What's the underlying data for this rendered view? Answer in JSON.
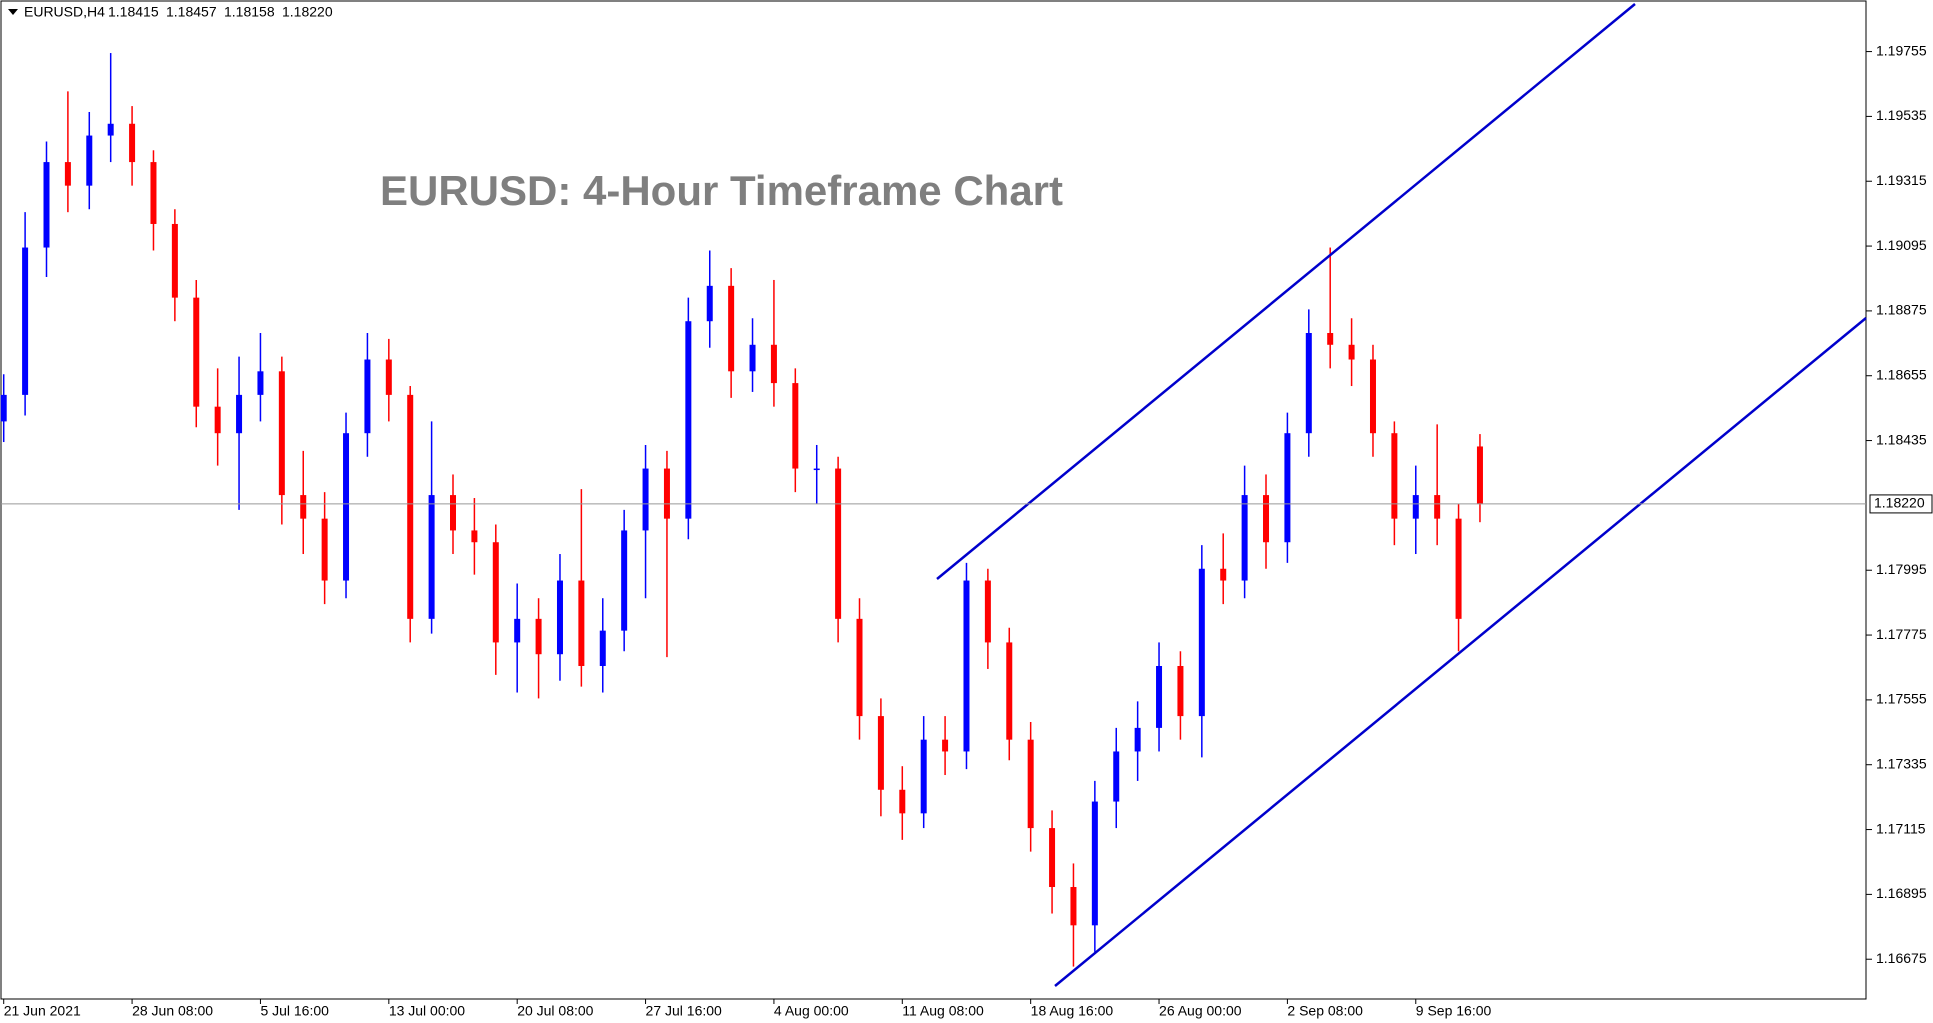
{
  "header": {
    "symbol": "EURUSD,H4",
    "open": "1.18415",
    "high": "1.18457",
    "low": "1.18158",
    "close": "1.18220"
  },
  "chart_data": {
    "type": "candlestick",
    "title": "EURUSD: 4-Hour Timeframe Chart",
    "up_color": "#0000ff",
    "down_color": "#ff0000",
    "categories": [
      "21 Jun 2021",
      null,
      null,
      null,
      null,
      null,
      "28 Jun 08:00",
      null,
      null,
      null,
      null,
      null,
      "5 Jul 16:00",
      null,
      null,
      null,
      null,
      null,
      "13 Jul 00:00",
      null,
      null,
      null,
      null,
      null,
      "20 Jul 08:00",
      null,
      null,
      null,
      null,
      null,
      "27 Jul 16:00",
      null,
      null,
      null,
      null,
      null,
      "4 Aug 00:00",
      null,
      null,
      null,
      null,
      null,
      "11 Aug 08:00",
      null,
      null,
      null,
      null,
      null,
      "18 Aug 16:00",
      null,
      null,
      null,
      null,
      null,
      "26 Aug 00:00",
      null,
      null,
      null,
      null,
      null,
      "2 Sep 08:00",
      null,
      null,
      null,
      null,
      null,
      "9 Sep 16:00",
      null,
      null,
      null
    ],
    "open": [
      1.185,
      1.1859,
      1.1909,
      1.1938,
      1.193,
      1.1947,
      1.1951,
      1.1938,
      1.1917,
      1.1892,
      1.1855,
      1.1846,
      1.1859,
      1.1867,
      1.1825,
      1.1817,
      1.1796,
      1.1846,
      1.1871,
      1.1859,
      1.1783,
      1.1825,
      1.1813,
      1.1809,
      1.1775,
      1.1783,
      1.1771,
      1.1796,
      1.1767,
      1.1779,
      1.1813,
      1.1834,
      1.1817,
      1.1884,
      1.1896,
      1.1867,
      1.1876,
      1.1863,
      1.1834,
      1.1834,
      1.1783,
      1.175,
      1.1725,
      1.1717,
      1.1742,
      1.1738,
      1.1796,
      1.1775,
      1.1742,
      1.1712,
      1.1692,
      1.1679,
      1.1721,
      1.1738,
      1.1746,
      1.1767,
      1.175,
      1.18,
      1.1796,
      1.1825,
      1.1809,
      1.1846,
      1.188,
      1.1876,
      1.1871,
      1.1846,
      1.1817,
      1.1825,
      1.1817,
      1.18415
    ],
    "high": [
      1.1866,
      1.1921,
      1.1945,
      1.1962,
      1.1955,
      1.1975,
      1.1957,
      1.1942,
      1.1922,
      1.1898,
      1.1868,
      1.1872,
      1.188,
      1.1872,
      1.184,
      1.1826,
      1.1853,
      1.188,
      1.1878,
      1.1862,
      1.185,
      1.1832,
      1.1824,
      1.1815,
      1.1795,
      1.179,
      1.1805,
      1.1827,
      1.179,
      1.182,
      1.1842,
      1.184,
      1.1892,
      1.1908,
      1.1902,
      1.1885,
      1.1898,
      1.1868,
      1.1842,
      1.1838,
      1.179,
      1.1756,
      1.1733,
      1.175,
      1.175,
      1.1802,
      1.18,
      1.178,
      1.1748,
      1.1718,
      1.17,
      1.1728,
      1.1746,
      1.1755,
      1.1775,
      1.1772,
      1.1808,
      1.1812,
      1.1835,
      1.1832,
      1.1853,
      1.1888,
      1.1909,
      1.1885,
      1.1876,
      1.185,
      1.1835,
      1.1849,
      1.1822,
      1.18457
    ],
    "low": [
      1.1843,
      1.1852,
      1.1899,
      1.1921,
      1.1922,
      1.1938,
      1.193,
      1.1908,
      1.1884,
      1.1848,
      1.1835,
      1.182,
      1.185,
      1.1815,
      1.1805,
      1.1788,
      1.179,
      1.1838,
      1.185,
      1.1775,
      1.1778,
      1.1805,
      1.1798,
      1.1764,
      1.1758,
      1.1756,
      1.1762,
      1.176,
      1.1758,
      1.1772,
      1.179,
      1.177,
      1.181,
      1.1875,
      1.1858,
      1.186,
      1.1855,
      1.1826,
      1.1822,
      1.1775,
      1.1742,
      1.1716,
      1.1708,
      1.1712,
      1.173,
      1.1732,
      1.1766,
      1.1735,
      1.1704,
      1.1683,
      1.1665,
      1.167,
      1.1712,
      1.1728,
      1.1738,
      1.1742,
      1.1736,
      1.1788,
      1.179,
      1.18,
      1.1802,
      1.1838,
      1.1868,
      1.1862,
      1.1838,
      1.1808,
      1.1805,
      1.1808,
      1.1772,
      1.18158
    ],
    "close": [
      1.1859,
      1.1909,
      1.1938,
      1.193,
      1.1947,
      1.1951,
      1.1938,
      1.1917,
      1.1892,
      1.1855,
      1.1846,
      1.1859,
      1.1867,
      1.1825,
      1.1817,
      1.1796,
      1.1846,
      1.1871,
      1.1859,
      1.1783,
      1.1825,
      1.1813,
      1.1809,
      1.1775,
      1.1783,
      1.1771,
      1.1796,
      1.1767,
      1.1779,
      1.1813,
      1.1834,
      1.1817,
      1.1884,
      1.1896,
      1.1867,
      1.1876,
      1.1863,
      1.1834,
      1.1834,
      1.1783,
      1.175,
      1.1725,
      1.1717,
      1.1742,
      1.1738,
      1.1796,
      1.1775,
      1.1742,
      1.1712,
      1.1692,
      1.1679,
      1.1721,
      1.1738,
      1.1746,
      1.1767,
      1.175,
      1.18,
      1.1796,
      1.1825,
      1.1809,
      1.1846,
      1.188,
      1.1876,
      1.1871,
      1.1846,
      1.1817,
      1.1825,
      1.1817,
      1.1783,
      1.1822
    ],
    "ylim": [
      1.1654,
      1.1993
    ],
    "yticks": [
      1.16675,
      1.16895,
      1.17115,
      1.17335,
      1.17555,
      1.17775,
      1.17995,
      1.18435,
      1.18655,
      1.18875,
      1.19095,
      1.19315,
      1.19535,
      1.19755
    ],
    "current_price": {
      "value": 1.1822,
      "label": "1.18220"
    }
  }
}
